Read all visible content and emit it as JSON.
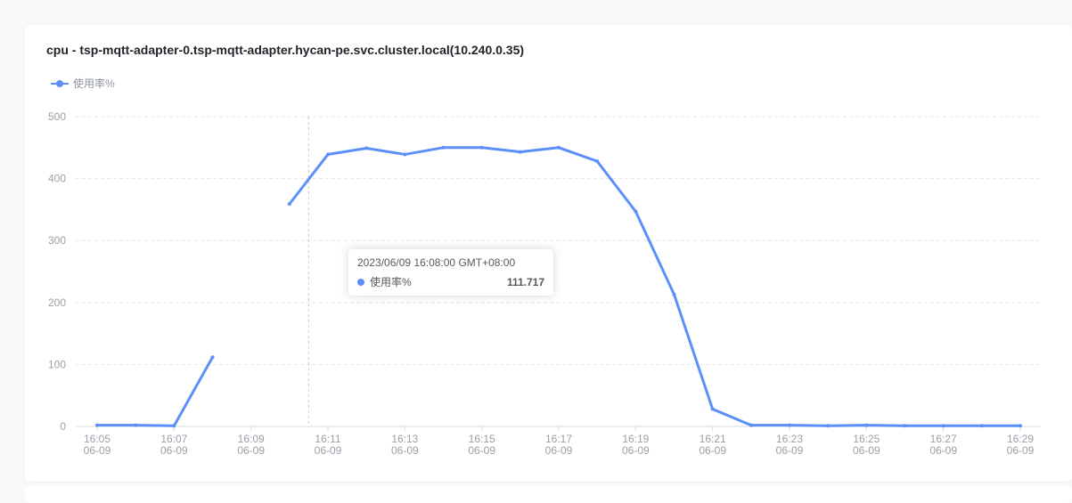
{
  "chart_data": {
    "type": "line",
    "title": "cpu - tsp-mqtt-adapter-0.tsp-mqtt-adapter.hycan-pe.svc.cluster.local(10.240.0.35)",
    "xlabel": "",
    "ylabel": "",
    "ylim": [
      0,
      500
    ],
    "yticks": [
      "0",
      "100",
      "200",
      "300",
      "400",
      "500"
    ],
    "xticks": [
      {
        "time": "16:05",
        "date": "06-09"
      },
      {
        "time": "16:07",
        "date": "06-09"
      },
      {
        "time": "16:09",
        "date": "06-09"
      },
      {
        "time": "16:11",
        "date": "06-09"
      },
      {
        "time": "16:13",
        "date": "06-09"
      },
      {
        "time": "16:15",
        "date": "06-09"
      },
      {
        "time": "16:17",
        "date": "06-09"
      },
      {
        "time": "16:19",
        "date": "06-09"
      },
      {
        "time": "16:21",
        "date": "06-09"
      },
      {
        "time": "16:23",
        "date": "06-09"
      },
      {
        "time": "16:25",
        "date": "06-09"
      },
      {
        "time": "16:27",
        "date": "06-09"
      },
      {
        "time": "16:29",
        "date": "06-09"
      }
    ],
    "x": [
      "16:05",
      "16:06",
      "16:07",
      "16:08",
      "16:09",
      "16:10",
      "16:11",
      "16:12",
      "16:13",
      "16:14",
      "16:15",
      "16:16",
      "16:17",
      "16:18",
      "16:19",
      "16:20",
      "16:21",
      "16:22",
      "16:23",
      "16:24",
      "16:25",
      "16:26",
      "16:27",
      "16:28",
      "16:29"
    ],
    "series": [
      {
        "name": "使用率%",
        "color": "#5b8ff9",
        "values": [
          2,
          2,
          1,
          111.717,
          null,
          359,
          439,
          449,
          439,
          450,
          450,
          443,
          450,
          428,
          347,
          213,
          28,
          2,
          2,
          1,
          2,
          1,
          1,
          1,
          1
        ]
      }
    ],
    "grid": true,
    "legend_position": "top-left",
    "crosshair_at": "16:10",
    "tooltip": {
      "title": "2023/06/09 16:08:00 GMT+08:00",
      "series_name": "使用率%",
      "value": "111.717"
    }
  }
}
